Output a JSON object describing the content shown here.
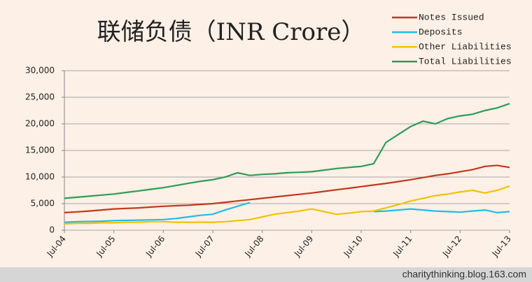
{
  "chart_data": {
    "type": "line",
    "title": "联储负债（INR Crore）",
    "watermark": "charitythinking.blog.163.com",
    "categories": [
      "Jul-04",
      null,
      null,
      null,
      "Jul-05",
      null,
      null,
      null,
      "Jul-06",
      null,
      null,
      null,
      "Jul-07",
      null,
      null,
      null,
      "Jul-08",
      null,
      null,
      null,
      "Jul-09",
      null,
      null,
      null,
      "Jul-10",
      null,
      null,
      null,
      "Jul-11",
      null,
      null,
      null,
      "Jul-12",
      null,
      null,
      null,
      "Jul-13"
    ],
    "ylim": [
      0,
      30000
    ],
    "yticks": [
      0,
      {
        "value": 5000,
        "label": "5,000"
      },
      {
        "value": 10000,
        "label": "10,000"
      },
      {
        "value": 15000,
        "label": "15,000"
      },
      {
        "value": 20000,
        "label": "20,000"
      },
      {
        "value": 25000,
        "label": "25,000"
      },
      {
        "value": 30000,
        "label": "30,000"
      }
    ],
    "grid": true,
    "legend": "top-right",
    "series": [
      {
        "name": "Notes Issued",
        "color": "#c0391b",
        "values": [
          3300,
          3450,
          3600,
          3800,
          4000,
          4100,
          4200,
          4350,
          4500,
          4600,
          4700,
          4850,
          5000,
          5250,
          5500,
          5750,
          6000,
          6250,
          6500,
          6750,
          7000,
          7300,
          7600,
          7900,
          8200,
          8500,
          8800,
          9150,
          9500,
          9900,
          10300,
          10600,
          11000,
          11400,
          12000,
          12200,
          11800
        ]
      },
      {
        "name": "Deposits",
        "color": "#1fbde8",
        "values": [
          1500,
          1600,
          1650,
          1700,
          1800,
          1850,
          1900,
          1950,
          2000,
          2200,
          2500,
          2800,
          3000,
          3800,
          4500,
          5200,
          null,
          null,
          null,
          null,
          null,
          null,
          null,
          null,
          null,
          3500,
          3600,
          3800,
          4000,
          3800,
          3600,
          3500,
          3400,
          3600,
          3800,
          3300,
          3500
        ]
      },
      {
        "name": "Other Liabilities",
        "color": "#f2c200",
        "values": [
          1200,
          1300,
          1300,
          1400,
          1400,
          1500,
          1500,
          1600,
          1600,
          1500,
          1500,
          1500,
          1500,
          1600,
          1800,
          2000,
          2500,
          3000,
          3300,
          3600,
          4000,
          3500,
          3000,
          3200,
          3500,
          3600,
          4200,
          4800,
          5500,
          6000,
          6500,
          6800,
          7200,
          7500,
          7000,
          7500,
          8300
        ]
      },
      {
        "name": "Total Liabilities",
        "color": "#2e9b57",
        "values": [
          6000,
          6200,
          6400,
          6600,
          6800,
          7100,
          7400,
          7700,
          8000,
          8400,
          8800,
          9200,
          9500,
          10000,
          10800,
          10300,
          10500,
          10600,
          10800,
          10900,
          11000,
          11300,
          11600,
          11800,
          12000,
          12500,
          16500,
          18000,
          19500,
          20500,
          20000,
          21000,
          21500,
          21800,
          22500,
          23000,
          23800
        ]
      }
    ]
  }
}
